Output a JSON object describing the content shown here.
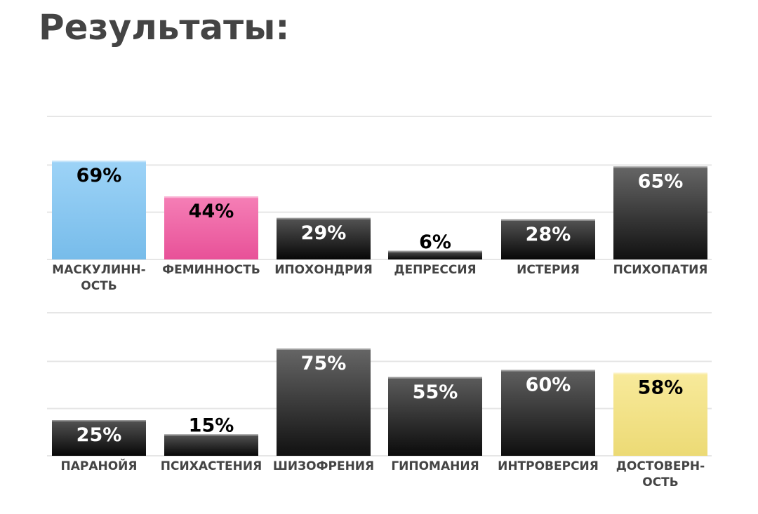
{
  "title": "Результаты:",
  "chart_data": [
    {
      "type": "bar",
      "title": "",
      "xlabel": "",
      "ylabel": "",
      "ylim": [
        0,
        100
      ],
      "grid": true,
      "categories": [
        [
          "МАСКУЛИНН-",
          "ОСТЬ"
        ],
        [
          "ФЕМИННОСТЬ"
        ],
        [
          "ИПОХОНДРИЯ"
        ],
        [
          "ДЕПРЕССИЯ"
        ],
        [
          "ИСТЕРИЯ"
        ],
        [
          "ПСИХОПАТИЯ"
        ]
      ],
      "values": [
        69,
        44,
        29,
        6,
        28,
        65
      ],
      "value_labels": [
        "69%",
        "44%",
        "29%",
        "6%",
        "28%",
        "65%"
      ],
      "bar_colors": [
        "#7cc4f4",
        "#f2549e",
        "#111111",
        "#111111",
        "#111111",
        "#2a2a2a"
      ],
      "label_colors": [
        "#000000",
        "#000000",
        "#ffffff",
        "#000000",
        "#ffffff",
        "#ffffff"
      ]
    },
    {
      "type": "bar",
      "title": "",
      "xlabel": "",
      "ylabel": "",
      "ylim": [
        0,
        100
      ],
      "grid": true,
      "categories": [
        [
          "ПАРАНОЙЯ"
        ],
        [
          "ПСИХАСТЕНИЯ"
        ],
        [
          "ШИЗОФРЕНИЯ"
        ],
        [
          "ГИПОМАНИЯ"
        ],
        [
          "ИНТРОВЕРСИЯ"
        ],
        [
          "ДОСТОВЕРН-",
          "ОСТЬ"
        ]
      ],
      "values": [
        25,
        15,
        75,
        55,
        60,
        58
      ],
      "value_labels": [
        "25%",
        "15%",
        "75%",
        "55%",
        "60%",
        "58%"
      ],
      "bar_colors": [
        "#111111",
        "#111111",
        "#2a2a2a",
        "#1c1c1c",
        "#222222",
        "#f6e37a"
      ],
      "label_colors": [
        "#ffffff",
        "#000000",
        "#ffffff",
        "#ffffff",
        "#ffffff",
        "#000000"
      ]
    }
  ]
}
